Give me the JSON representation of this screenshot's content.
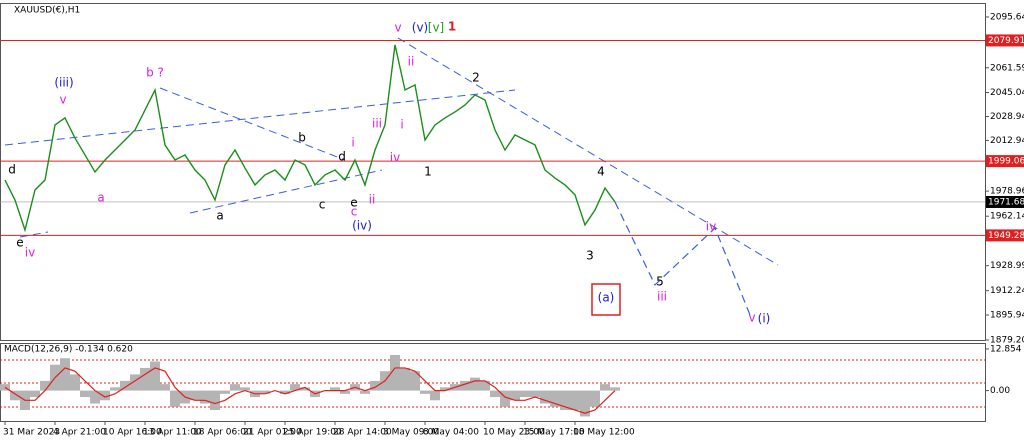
{
  "chart_data": [
    {
      "type": "line",
      "title": "XAUUSD(€),H1",
      "categories": [
        "31 Mar 2023",
        null,
        null,
        null,
        null,
        "4 Apr 21:00",
        null,
        null,
        null,
        null,
        "10 Apr 16:00",
        null,
        null,
        null,
        "13 Apr 11:00",
        null,
        null,
        null,
        null,
        "18 Apr 06:00",
        null,
        null,
        null,
        null,
        "21 Apr 01:00",
        null,
        null,
        null,
        "25 Apr 19:00",
        null,
        null,
        null,
        null,
        "28 Apr 14:00",
        null,
        null,
        null,
        null,
        "3 May 09:00",
        null,
        null,
        null,
        "8 May 04:00",
        null,
        null,
        null,
        null,
        null,
        "10 May 23:00",
        null,
        null,
        null,
        "15 May 17:00",
        null,
        null,
        null,
        null,
        "18 May 12:00",
        null,
        null,
        null,
        null
      ],
      "values": [
        1986.4,
        1973.0,
        1952.9,
        1979.7,
        1986.4,
        2023.3,
        2028.0,
        2014.5,
        2003.2,
        1991.8,
        1999.8,
        2006.5,
        2013.2,
        2019.9,
        2033.3,
        2046.7,
        2009.9,
        1999.8,
        2003.2,
        1993.1,
        1986.4,
        1973.0,
        1996.5,
        2006.5,
        1994.4,
        1983.1,
        1989.8,
        1993.1,
        1986.4,
        1999.8,
        1996.5,
        1983.1,
        1989.8,
        1993.1,
        1986.4,
        1999.8,
        1983.1,
        2006.5,
        2023.3,
        2076.9,
        2046.7,
        2050.1,
        2013.2,
        2023.3,
        2028.0,
        2032.0,
        2036.7,
        2043.4,
        2040.0,
        2019.9,
        2006.5,
        2016.6,
        2013.2,
        2009.9,
        1993.1,
        1987.7,
        1983.1,
        1976.4,
        1956.3,
        1966.3,
        1981.0,
        1971.68
      ],
      "color": "#1a8f1a",
      "projection": {
        "color": "#3b5fd6",
        "x": [
          61,
          65,
          71,
          74.5
        ],
        "values": [
          1971.68,
          1916.1,
          1954.2,
          1896.0
        ]
      },
      "ylim": [
        1879.2,
        2105.0
      ],
      "yticks": [
        2095.64,
        2061.59,
        2045.04,
        2028.94,
        2012.94,
        1978.96,
        1962.14,
        1928.99,
        1912.24,
        1895.94,
        {
          "value": 1879.2,
          "label": "1879.20"
        }
      ],
      "levels": [
        {
          "value": 2079.91,
          "color": "#e02020"
        },
        {
          "value": 1999.06,
          "color": "#e02020"
        },
        {
          "value": 1949.28,
          "color": "#e02020"
        }
      ],
      "current": 1971.68,
      "annotations": [
        {
          "text": "d",
          "color": "#000000"
        },
        {
          "text": "e",
          "color": "#000000"
        },
        {
          "text": "iv",
          "color": "#e020e0"
        },
        {
          "text": "(iii)",
          "color": "#2020d0"
        },
        {
          "text": "v",
          "color": "#e020e0"
        },
        {
          "text": "a",
          "color": "#e020e0"
        },
        {
          "text": "b ?",
          "color": "#e020e0"
        },
        {
          "text": "a",
          "color": "#000000"
        },
        {
          "text": "b",
          "color": "#000000"
        },
        {
          "text": "c",
          "color": "#000000"
        },
        {
          "text": "d",
          "color": "#000000"
        },
        {
          "text": "e",
          "color": "#000000"
        },
        {
          "text": "c",
          "color": "#e020e0"
        },
        {
          "text": "i",
          "color": "#e020e0"
        },
        {
          "text": "ii",
          "color": "#e020e0"
        },
        {
          "text": "(iv)",
          "color": "#2020d0"
        },
        {
          "text": "iii",
          "color": "#e020e0"
        },
        {
          "text": "i",
          "color": "#e020e0"
        },
        {
          "text": "iv",
          "color": "#e020e0"
        },
        {
          "text": "ii",
          "color": "#e020e0"
        },
        {
          "text": "v",
          "color": "#e020e0"
        },
        {
          "text": "(v)",
          "color": "#2020d0"
        },
        {
          "text": "[v]",
          "color": "#20a020"
        },
        {
          "text": "1",
          "color": "#e02020"
        },
        {
          "text": "1",
          "color": "#000000"
        },
        {
          "text": "2",
          "color": "#000000"
        },
        {
          "text": "4",
          "color": "#000000"
        },
        {
          "text": "3",
          "color": "#000000"
        },
        {
          "text": "5",
          "color": "#000000"
        },
        {
          "text": "iii",
          "color": "#e020e0"
        },
        {
          "text": "iv",
          "color": "#e020e0"
        },
        {
          "text": "v",
          "color": "#e020e0"
        },
        {
          "text": "(i)",
          "color": "#2020d0"
        },
        {
          "text": "(a)",
          "color": "#2020d0"
        }
      ]
    },
    {
      "type": "macd",
      "title": "MACD(12,26,9) -0.134 0.620",
      "histogram": {
        "color": "#b4b4b4",
        "values": [
          2,
          -3,
          -6,
          -2,
          3,
          8,
          10,
          5,
          -2,
          -4,
          -3,
          1,
          3,
          5,
          7,
          9,
          2,
          -5,
          -4,
          -3,
          -4,
          -6,
          -1,
          2,
          1,
          -2,
          -1,
          0,
          -1,
          2,
          1,
          -2,
          0,
          1,
          -1,
          2,
          -1,
          3,
          6,
          11,
          7,
          6,
          -1,
          -3,
          1,
          2,
          3,
          4,
          3,
          -2,
          -5,
          -3,
          -2,
          -2,
          -4,
          -5,
          -6,
          -6,
          -8,
          -5,
          2,
          1
        ]
      },
      "signal": {
        "color": "#e02020",
        "values": [
          1,
          -1,
          -3,
          -3,
          0,
          4,
          7,
          6,
          3,
          0,
          -2,
          -1,
          1,
          3,
          5,
          7,
          6,
          1,
          -2,
          -3,
          -3,
          -4,
          -3,
          -1,
          0,
          -1,
          -1,
          0,
          -1,
          0,
          1,
          -1,
          0,
          0,
          0,
          1,
          0,
          1,
          3,
          7,
          7,
          6,
          3,
          0,
          0,
          1,
          2,
          3,
          3,
          1,
          -2,
          -3,
          -3,
          -2,
          -3,
          -4,
          -5,
          -6,
          -7,
          -6,
          -3,
          0
        ]
      },
      "ylim": [
        -9.4,
        14.4
      ],
      "yticks": [
        12.854,
        {
          "value": 0,
          "label": "0.00"
        }
      ]
    }
  ]
}
